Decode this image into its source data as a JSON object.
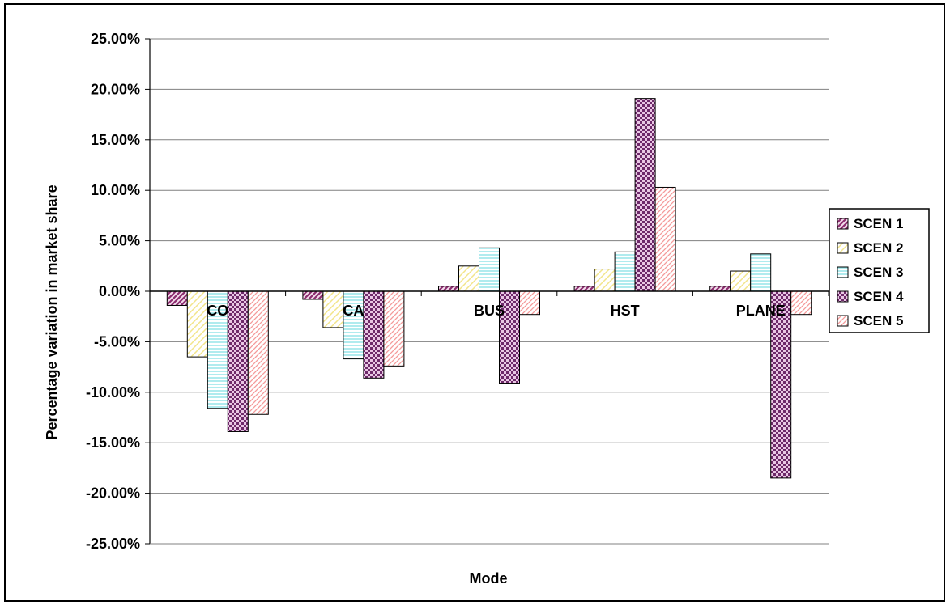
{
  "chart_data": {
    "type": "bar",
    "xlabel": "Mode",
    "ylabel": "Percentage variation in market share",
    "categories": [
      "CO",
      "CA",
      "BUS",
      "HST",
      "PLANE"
    ],
    "ylim": [
      -25,
      25
    ],
    "ytick_step": 5,
    "ytick_format": "percent_2dp",
    "grid": true,
    "legend_position": "right",
    "series": [
      {
        "name": "SCEN 1",
        "values": [
          -1.4,
          -0.8,
          0.5,
          0.5,
          0.5
        ],
        "pattern": "diag-purple"
      },
      {
        "name": "SCEN 2",
        "values": [
          -6.5,
          -3.6,
          2.5,
          2.2,
          2.0
        ],
        "pattern": "diag-yellow"
      },
      {
        "name": "SCEN 3",
        "values": [
          -11.6,
          -6.7,
          4.3,
          3.9,
          3.7
        ],
        "pattern": "horiz-cyan"
      },
      {
        "name": "SCEN 4",
        "values": [
          -13.9,
          -8.6,
          -9.1,
          19.1,
          -18.5
        ],
        "pattern": "check-purple"
      },
      {
        "name": "SCEN 5",
        "values": [
          -12.2,
          -7.4,
          -2.3,
          10.3,
          -2.3
        ],
        "pattern": "diag-red"
      }
    ]
  }
}
